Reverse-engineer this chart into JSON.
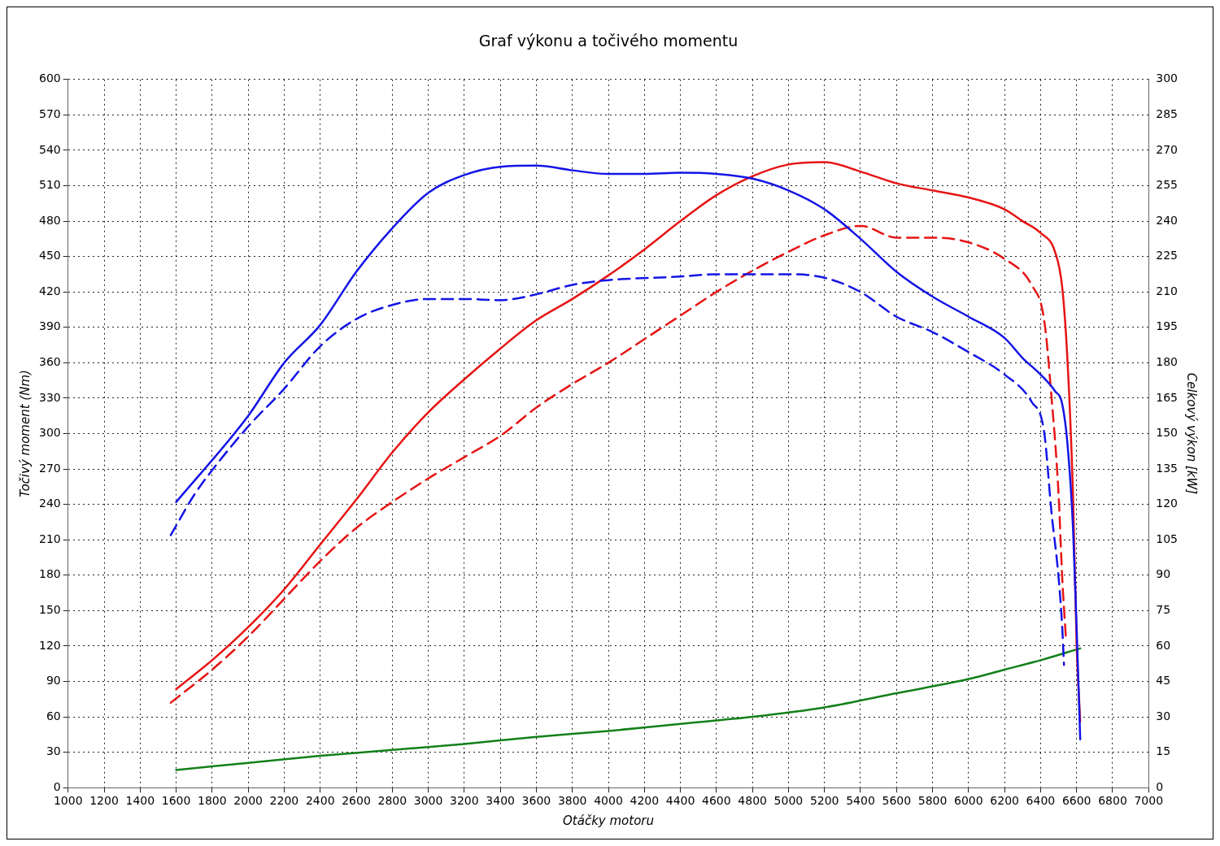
{
  "chart_data": {
    "type": "line",
    "title": "Graf výkonu a točivého momentu",
    "xlabel": "Otáčky motoru",
    "ylabel": "Točivý moment (Nm)",
    "y2label": "Celkový výkon [kW]",
    "xlim": [
      1000,
      7000
    ],
    "xticks": [
      1000,
      1200,
      1400,
      1600,
      1800,
      2000,
      2200,
      2400,
      2600,
      2800,
      3000,
      3200,
      3400,
      3600,
      3800,
      4000,
      4200,
      4400,
      4600,
      4800,
      5000,
      5200,
      5400,
      5600,
      5800,
      6000,
      6200,
      6400,
      6600,
      6800,
      7000
    ],
    "ylim": [
      0,
      600
    ],
    "yticks": [
      0,
      30,
      60,
      90,
      120,
      150,
      180,
      210,
      240,
      270,
      300,
      330,
      360,
      390,
      420,
      450,
      480,
      510,
      540,
      570,
      600
    ],
    "y2lim": [
      0,
      300
    ],
    "y2ticks": [
      0,
      15,
      30,
      45,
      60,
      75,
      90,
      105,
      120,
      135,
      150,
      165,
      180,
      195,
      210,
      225,
      240,
      255,
      270,
      285,
      300
    ],
    "grid": true,
    "legend": false,
    "marker": "none",
    "series": [
      {
        "color": "#1414e6",
        "line_style": "solid",
        "x": [
          1600,
          2000,
          2200,
          2400,
          2600,
          2800,
          3000,
          3200,
          3400,
          3600,
          3800,
          4000,
          4200,
          4400,
          4600,
          4800,
          5000,
          5200,
          5400,
          5600,
          5800,
          6000,
          6200,
          6300,
          6400,
          6480,
          6520,
          6550,
          6580,
          6600,
          6620
        ],
        "values": [
          242,
          315,
          360,
          392,
          437,
          474,
          504,
          519,
          526,
          527,
          523,
          520,
          520,
          521,
          520,
          516,
          506,
          490,
          465,
          437,
          416,
          399,
          381,
          364,
          350,
          336,
          325,
          290,
          220,
          136,
          41
        ]
      },
      {
        "color": "#1414e6",
        "line_style": "dashed",
        "x": [
          1570,
          1700,
          1800,
          2000,
          2200,
          2400,
          2600,
          2800,
          3000,
          3200,
          3400,
          3600,
          3800,
          4000,
          4400,
          4600,
          4800,
          5000,
          5200,
          5400,
          5600,
          5800,
          6000,
          6200,
          6350,
          6420,
          6460,
          6500,
          6520,
          6530
        ],
        "values": [
          214,
          248,
          269,
          306,
          338,
          374,
          397,
          409,
          414,
          414,
          413,
          418,
          426,
          430,
          433,
          435,
          435,
          435,
          432,
          420,
          399,
          386,
          369,
          350,
          327,
          301,
          234,
          178,
          136,
          104
        ]
      },
      {
        "color": "#e61414",
        "line_style": "solid",
        "axis": "y2",
        "x": [
          1600,
          1800,
          2000,
          2200,
          2400,
          2600,
          2800,
          3000,
          3200,
          3400,
          3600,
          3800,
          4000,
          4200,
          4400,
          4600,
          4800,
          5000,
          5200,
          5400,
          5600,
          5800,
          6000,
          6200,
          6300,
          6400,
          6480,
          6520,
          6550,
          6580,
          6600,
          6620
        ],
        "values": [
          41.7,
          54,
          68,
          84,
          103,
          122,
          142,
          159,
          173,
          186,
          198,
          207,
          217,
          228,
          240,
          251,
          259,
          264,
          265,
          261,
          256,
          253,
          250,
          245,
          240,
          235,
          227,
          212,
          180,
          124,
          61,
          28
        ]
      },
      {
        "color": "#e61414",
        "line_style": "dashed",
        "axis": "y2",
        "x": [
          1570,
          1800,
          2000,
          2200,
          2400,
          2600,
          2800,
          3000,
          3200,
          3400,
          3600,
          3800,
          4000,
          4200,
          4400,
          4600,
          4800,
          5000,
          5200,
          5400,
          5600,
          5800,
          6000,
          6200,
          6350,
          6420,
          6460,
          6500,
          6520,
          6540
        ],
        "values": [
          36,
          50,
          64,
          80,
          96,
          110,
          121,
          131,
          140,
          149,
          161,
          171,
          180,
          190,
          200,
          210,
          219,
          227,
          234,
          238,
          233,
          233,
          231,
          224,
          213,
          198,
          166,
          124,
          89,
          64
        ]
      },
      {
        "color": "#13801a",
        "line_style": "solid",
        "axis": "y2",
        "x": [
          1600,
          2000,
          2400,
          2800,
          3200,
          3600,
          4000,
          4400,
          4800,
          5200,
          5600,
          6000,
          6200,
          6400,
          6620
        ],
        "values": [
          7.5,
          10.5,
          13.5,
          16,
          18.5,
          21.5,
          24,
          27,
          30,
          34,
          40,
          46,
          50,
          54,
          59
        ]
      }
    ]
  }
}
